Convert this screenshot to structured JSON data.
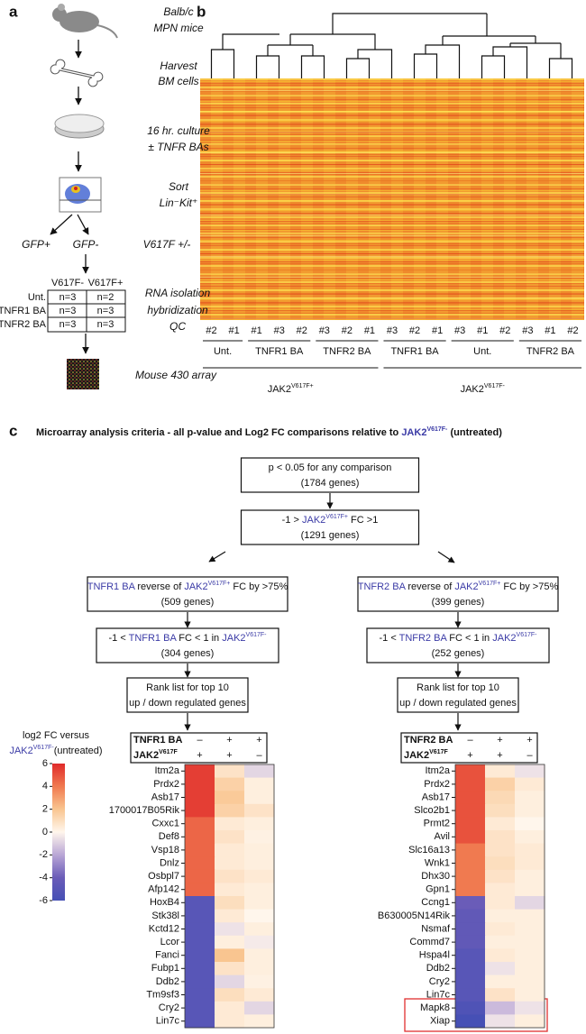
{
  "panel_a": {
    "label": "a",
    "steps": [
      [
        "Balb/c",
        "MPN mice"
      ],
      [
        "Harvest",
        "BM cells"
      ],
      [
        "16 hr. culture",
        "± TNFR BAs"
      ],
      [
        "Sort",
        "Lin⁻Kit⁺"
      ]
    ],
    "split": [
      "GFP+",
      "GFP-",
      "V617F +/-"
    ],
    "table": {
      "header": [
        "V617F-",
        "V617F+"
      ],
      "rows": [
        [
          "Unt.",
          "n=3",
          "n=2"
        ],
        [
          "TNFR1 BA",
          "n=3",
          "n=3"
        ],
        [
          "TNFR2 BA",
          "n=3",
          "n=3"
        ]
      ]
    },
    "qc": [
      "RNA isolation",
      "hybridization",
      "QC"
    ],
    "array": "Mouse 430 array"
  },
  "panel_b": {
    "label": "b",
    "genotypes": [
      {
        "label": [
          "JAK2",
          {
            "sup": "V617F+"
          }
        ],
        "groups": [
          {
            "name": "Unt.",
            "samples": [
              "#2",
              "#1"
            ]
          },
          {
            "name": "TNFR1 BA",
            "samples": [
              "#1",
              "#3",
              "#2"
            ]
          },
          {
            "name": "TNFR2 BA",
            "samples": [
              "#3",
              "#2",
              "#1"
            ]
          }
        ]
      },
      {
        "label": [
          "JAK2",
          {
            "sup": "V617F-"
          }
        ],
        "groups": [
          {
            "name": "TNFR1 BA",
            "samples": [
              "#3",
              "#2",
              "#1"
            ]
          },
          {
            "name": "Unt.",
            "samples": [
              "#3",
              "#1",
              "#2"
            ]
          },
          {
            "name": "TNFR2 BA",
            "samples": [
              "#3",
              "#1",
              "#2"
            ]
          }
        ]
      }
    ]
  },
  "panel_c": {
    "label": "c",
    "title": [
      "Microarray analysis criteria - all p-value and Log2 FC comparisons relative to ",
      {
        "text": "JAK2",
        "color": "#3b3ba6"
      },
      {
        "sup": "V617F-",
        "color": "#3b3ba6"
      },
      " (untreated)"
    ],
    "top_boxes": [
      [
        [
          "p < 0.05 for any comparison"
        ],
        [
          "(1784 genes)"
        ]
      ],
      [
        [
          "-1 > ",
          {
            "text": "JAK2",
            "color": "#3b3ba6"
          },
          {
            "sup": "V617F+",
            "color": "#3b3ba6"
          },
          " FC >1"
        ],
        [
          "(1291 genes)"
        ]
      ]
    ],
    "branches": [
      {
        "boxes": [
          [
            [
              {
                "text": "TNFR1 BA",
                "color": "#3b3ba6"
              },
              " reverse of ",
              {
                "text": "JAK2",
                "color": "#3b3ba6"
              },
              {
                "sup": "V617F+",
                "color": "#3b3ba6"
              },
              " FC by >75%"
            ],
            [
              "(509 genes)"
            ]
          ],
          [
            [
              "-1 < ",
              {
                "text": "TNFR1 BA",
                "color": "#3b3ba6"
              },
              " FC < 1 in ",
              {
                "text": "JAK2",
                "color": "#3b3ba6"
              },
              {
                "sup": "V617F-",
                "color": "#3b3ba6"
              }
            ],
            [
              "(304 genes)"
            ]
          ],
          [
            [
              "Rank list for top 10"
            ],
            [
              "up / down regulated genes"
            ]
          ]
        ],
        "heatmap": {
          "header": [
            {
              "label": [
                "TNFR1 BA"
              ],
              "signs": [
                "–",
                "+",
                "+"
              ]
            },
            {
              "label": [
                "JAK2",
                {
                  "sup": "V617F"
                }
              ],
              "signs": [
                "+",
                "+",
                "–"
              ]
            }
          ],
          "genes": [
            "Itm2a",
            "Prdx2",
            "Asb17",
            "1700017B05Rik",
            "Cxxc1",
            "Def8",
            "Vsp18",
            "Dnlz",
            "Osbpl7",
            "Afp142",
            "HoxB4",
            "Stk38l",
            "Kctd12",
            "Lcor",
            "Fanci",
            "Fubp1",
            "Ddb2",
            "Tm9sf3",
            "Cry2",
            "Lin7c"
          ],
          "values": [
            [
              5.5,
              0.8,
              -0.8
            ],
            [
              5.5,
              1.5,
              0.3
            ],
            [
              5.5,
              1.8,
              0.3
            ],
            [
              5.5,
              1.5,
              0.8
            ],
            [
              4.5,
              0.5,
              0.3
            ],
            [
              4.5,
              0.8,
              0.2
            ],
            [
              4.5,
              0.5,
              0.3
            ],
            [
              4.5,
              0.5,
              0.3
            ],
            [
              4.5,
              0.8,
              0.5
            ],
            [
              4.5,
              0.5,
              0.3
            ],
            [
              -5,
              1,
              0.3
            ],
            [
              -5,
              0.5,
              0
            ],
            [
              -5,
              -0.5,
              0.3
            ],
            [
              -5,
              0.3,
              -0.3
            ],
            [
              -5,
              2,
              0.3
            ],
            [
              -5,
              0.8,
              0.3
            ],
            [
              -5,
              -0.8,
              0.2
            ],
            [
              -5,
              1,
              0.5
            ],
            [
              -5,
              0.5,
              -0.8
            ],
            [
              -5,
              0.5,
              0.3
            ]
          ]
        }
      },
      {
        "boxes": [
          [
            [
              {
                "text": "TNFR2 BA",
                "color": "#3b3ba6"
              },
              " reverse of ",
              {
                "text": "JAK2",
                "color": "#3b3ba6"
              },
              {
                "sup": "V617F+",
                "color": "#3b3ba6"
              },
              " FC by >75%"
            ],
            [
              "(399 genes)"
            ]
          ],
          [
            [
              "-1 < ",
              {
                "text": "TNFR2 BA",
                "color": "#3b3ba6"
              },
              " FC < 1 in ",
              {
                "text": "JAK2",
                "color": "#3b3ba6"
              },
              {
                "sup": "V617F-",
                "color": "#3b3ba6"
              }
            ],
            [
              "(252 genes)"
            ]
          ],
          [
            [
              "Rank list for top 10"
            ],
            [
              "up / down regulated genes"
            ]
          ]
        ],
        "heatmap": {
          "header": [
            {
              "label": [
                "TNFR2 BA"
              ],
              "signs": [
                "–",
                "+",
                "+"
              ]
            },
            {
              "label": [
                "JAK2",
                {
                  "sup": "V617F"
                }
              ],
              "signs": [
                "+",
                "+",
                "–"
              ]
            }
          ],
          "genes": [
            "Itm2a",
            "Prdx2",
            "Asb17",
            "Slco2b1",
            "Prmt2",
            "Avil",
            "Slc16a13",
            "Wnk1",
            "Dhx30",
            "Gpn1",
            "Ccng1",
            "B630005N14Rik",
            "Nsmaf",
            "Commd7",
            "Hspa4l",
            "Ddb2",
            "Cry2",
            "Lin7c",
            "Mapk8",
            "Xiap"
          ],
          "values": [
            [
              5,
              0.5,
              -0.5
            ],
            [
              5,
              1.5,
              0.5
            ],
            [
              5,
              1.2,
              0.3
            ],
            [
              5,
              1,
              0.3
            ],
            [
              5,
              0.5,
              0
            ],
            [
              5,
              0.8,
              0.3
            ],
            [
              4,
              0.8,
              0.5
            ],
            [
              4,
              1,
              0.5
            ],
            [
              4,
              0.8,
              0.3
            ],
            [
              4,
              0.5,
              0.3
            ],
            [
              -4,
              0.5,
              -0.8
            ],
            [
              -4.5,
              0.3,
              0.3
            ],
            [
              -4.5,
              0.5,
              0.3
            ],
            [
              -4.5,
              0.3,
              0.3
            ],
            [
              -5,
              0.5,
              0.3
            ],
            [
              -5,
              -0.5,
              0.3
            ],
            [
              -5,
              0.3,
              0.3
            ],
            [
              -5,
              0.8,
              0.3
            ],
            [
              -5.5,
              -1.5,
              -0.5
            ],
            [
              -6,
              -0.5,
              0.3
            ]
          ]
        }
      }
    ],
    "colorbar": {
      "title": [
        [
          "log2 FC versus"
        ],
        [
          {
            "text": "JAK2",
            "color": "#3b3ba6"
          },
          {
            "sup": "V617F-",
            "color": "#3b3ba6"
          },
          "(untreated)"
        ]
      ],
      "lim": [
        -6,
        6
      ],
      "ticks": [
        6,
        4,
        2,
        0,
        -2,
        -4,
        -6
      ],
      "colors": [
        "#4650b5",
        "#6a5cb8",
        "#b9a6d6",
        "#fff6ec",
        "#f9c590",
        "#f07a50",
        "#e02a2a"
      ]
    }
  }
}
